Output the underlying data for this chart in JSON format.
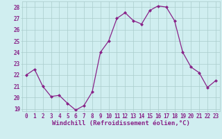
{
  "x": [
    0,
    1,
    2,
    3,
    4,
    5,
    6,
    7,
    8,
    9,
    10,
    11,
    12,
    13,
    14,
    15,
    16,
    17,
    18,
    19,
    20,
    21,
    22,
    23
  ],
  "y": [
    22.0,
    22.5,
    21.0,
    20.1,
    20.2,
    19.5,
    18.9,
    19.3,
    20.5,
    24.0,
    25.0,
    27.0,
    27.5,
    26.8,
    26.5,
    27.7,
    28.1,
    28.0,
    26.8,
    24.0,
    22.7,
    22.2,
    20.9,
    21.5
  ],
  "line_color": "#882288",
  "marker": "D",
  "marker_size": 2,
  "bg_color": "#d0eef0",
  "grid_color": "#aacccc",
  "xlabel": "Windchill (Refroidissement éolien,°C)",
  "xlabel_color": "#882288",
  "tick_color": "#882288",
  "ylim_min": 18.8,
  "ylim_max": 28.5,
  "yticks": [
    19,
    20,
    21,
    22,
    23,
    24,
    25,
    26,
    27,
    28
  ],
  "xticks": [
    0,
    1,
    2,
    3,
    4,
    5,
    6,
    7,
    8,
    9,
    10,
    11,
    12,
    13,
    14,
    15,
    16,
    17,
    18,
    19,
    20,
    21,
    22,
    23
  ],
  "tick_fontsize": 5.5,
  "xlabel_fontsize": 6.5
}
